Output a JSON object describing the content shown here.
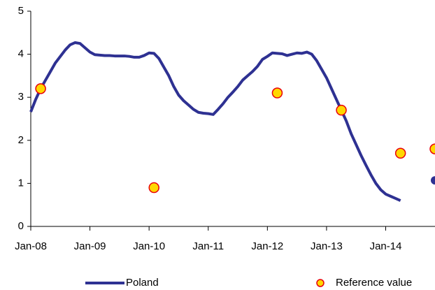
{
  "chart_data": {
    "type": "line",
    "xlim": [
      "2008-01",
      "2014-11"
    ],
    "xticks": [
      {
        "value": "2008-01",
        "label": "Jan-08"
      },
      {
        "value": "2009-01",
        "label": "Jan-09"
      },
      {
        "value": "2010-01",
        "label": "Jan-10"
      },
      {
        "value": "2011-01",
        "label": "Jan-11"
      },
      {
        "value": "2012-01",
        "label": "Jan-12"
      },
      {
        "value": "2013-01",
        "label": "Jan-13"
      },
      {
        "value": "2014-01",
        "label": "Jan-14"
      }
    ],
    "ylim": [
      0,
      5
    ],
    "yticks": [
      0,
      1,
      2,
      3,
      4,
      5
    ],
    "grid": false,
    "legend": "bottom",
    "series": [
      {
        "name": "Poland",
        "color": "#2e3192",
        "style": "line",
        "x": [
          "2008-01",
          "2008-02",
          "2008-03",
          "2008-04",
          "2008-05",
          "2008-06",
          "2008-07",
          "2008-08",
          "2008-09",
          "2008-10",
          "2008-11",
          "2008-12",
          "2009-01",
          "2009-02",
          "2009-03",
          "2009-04",
          "2009-05",
          "2009-06",
          "2009-07",
          "2009-08",
          "2009-09",
          "2009-10",
          "2009-11",
          "2009-12",
          "2010-01",
          "2010-02",
          "2010-03",
          "2010-04",
          "2010-05",
          "2010-06",
          "2010-07",
          "2010-08",
          "2010-09",
          "2010-10",
          "2010-11",
          "2010-12",
          "2011-01",
          "2011-02",
          "2011-03",
          "2011-04",
          "2011-05",
          "2011-06",
          "2011-07",
          "2011-08",
          "2011-09",
          "2011-10",
          "2011-11",
          "2011-12",
          "2012-01",
          "2012-02",
          "2012-03",
          "2012-04",
          "2012-05",
          "2012-06",
          "2012-07",
          "2012-08",
          "2012-09",
          "2012-10",
          "2012-11",
          "2012-12",
          "2013-01",
          "2013-02",
          "2013-03",
          "2013-04",
          "2013-05",
          "2013-06",
          "2013-07",
          "2013-08",
          "2013-09",
          "2013-10",
          "2013-11",
          "2013-12",
          "2014-01",
          "2014-02",
          "2014-03",
          "2014-04",
          "2014-05",
          "2014-11"
        ],
        "values": [
          2.66,
          2.95,
          3.2,
          3.4,
          3.6,
          3.8,
          3.95,
          4.1,
          4.22,
          4.27,
          4.25,
          4.15,
          4.05,
          3.99,
          3.98,
          3.97,
          3.97,
          3.96,
          3.96,
          3.96,
          3.95,
          3.93,
          3.93,
          3.97,
          4.03,
          4.02,
          3.9,
          3.7,
          3.5,
          3.25,
          3.05,
          2.92,
          2.82,
          2.72,
          2.65,
          2.63,
          2.62,
          2.6,
          2.72,
          2.85,
          3.0,
          3.12,
          3.25,
          3.4,
          3.5,
          3.6,
          3.72,
          3.88,
          3.95,
          4.03,
          4.02,
          4.01,
          3.97,
          4.0,
          4.03,
          4.02,
          4.05,
          4.0,
          3.85,
          3.65,
          3.45,
          3.2,
          2.95,
          2.7,
          2.45,
          2.15,
          1.9,
          1.65,
          1.42,
          1.2,
          1.0,
          0.85,
          0.75,
          0.7,
          0.65,
          0.6,
          null,
          1.07
        ]
      },
      {
        "name": "Reference value",
        "color": "#ffd700",
        "edge": "#e8000b",
        "style": "marker",
        "x": [
          "2008-03",
          "2010-02",
          "2012-03",
          "2013-04",
          "2014-04",
          "2014-11"
        ],
        "values": [
          3.2,
          0.9,
          3.1,
          2.7,
          1.7,
          1.8
        ]
      }
    ]
  }
}
